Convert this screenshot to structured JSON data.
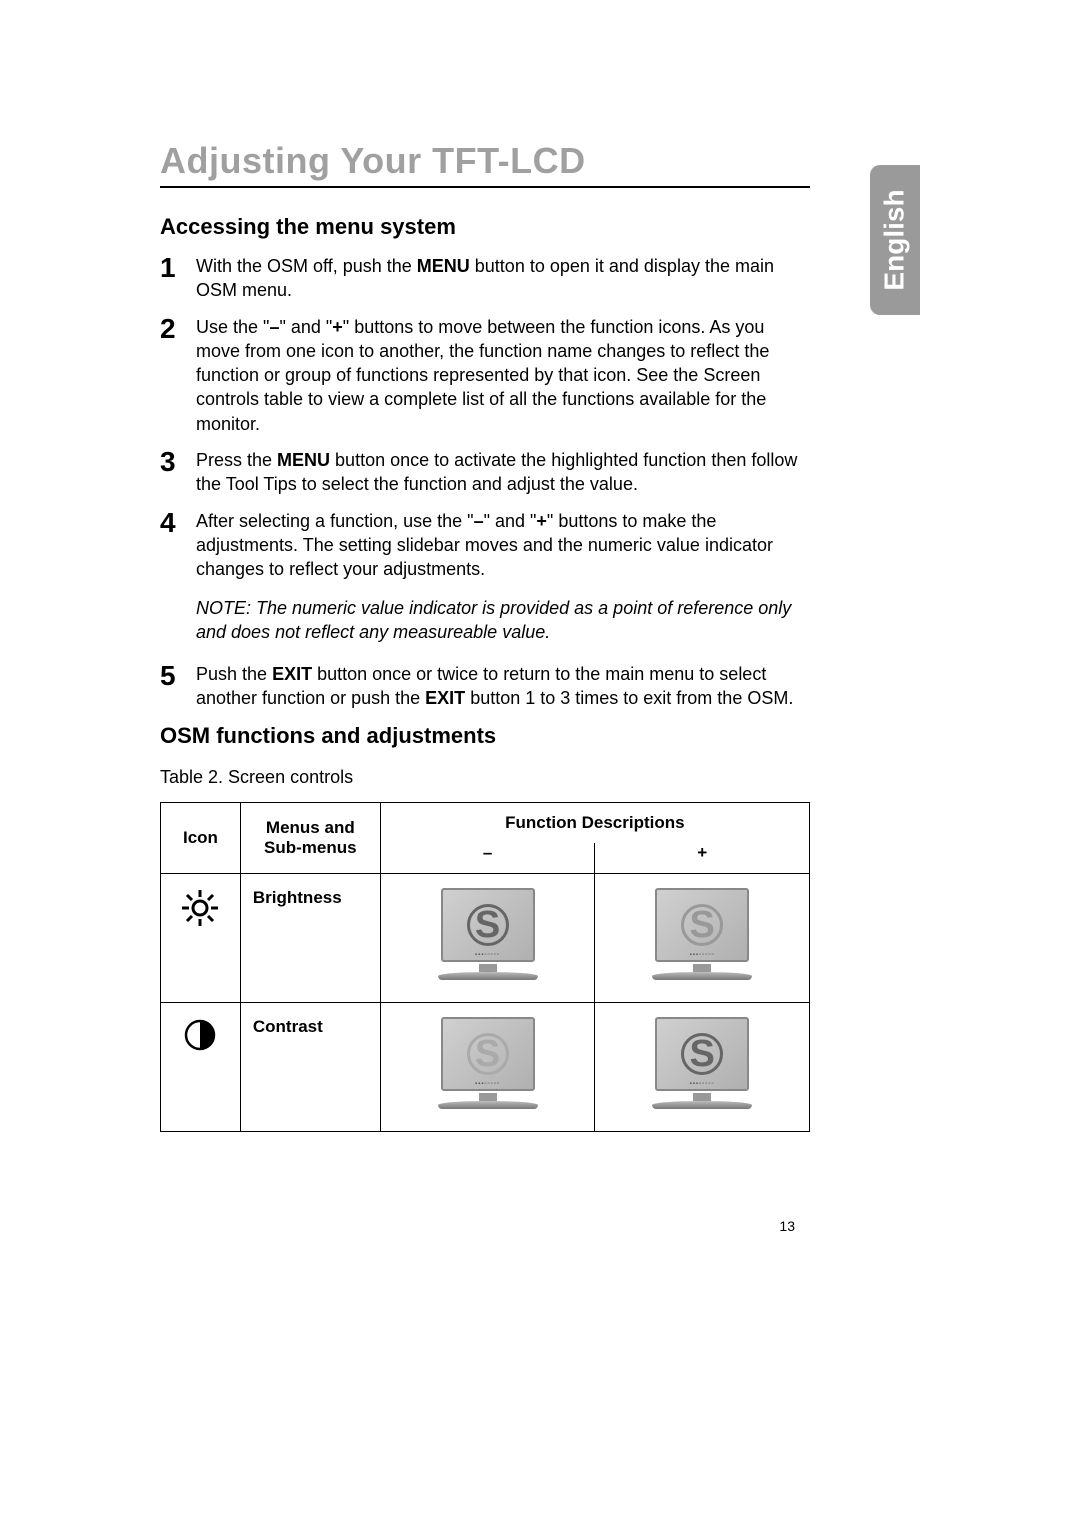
{
  "title": "Adjusting Your TFT-LCD",
  "language_tab": "English",
  "section1_heading": "Accessing the menu system",
  "steps": [
    {
      "num": "1",
      "html": "With the OSM off, push the <b>MENU</b> button to open it and display the main OSM menu."
    },
    {
      "num": "2",
      "html": "Use the \"<b>–</b>\" and \"<b>+</b>\" buttons to move between the function icons. As you move from one icon to another, the function name changes to reflect the function or group of functions represented by that icon. See the Screen controls table to view a complete list of all the functions available for the monitor."
    },
    {
      "num": "3",
      "html": "Press the <b>MENU</b> button once to activate the highlighted function then follow the Tool Tips to select the function and adjust the value."
    },
    {
      "num": "4",
      "html": "After selecting a function, use the \"<b>–</b>\" and \"<b>+</b>\" buttons to make the adjustments. The setting slidebar moves and the numeric value indicator changes to reflect your adjustments."
    }
  ],
  "note": "NOTE: The numeric value indicator is provided as a point of reference only and does not reflect any measureable value.",
  "step5": {
    "num": "5",
    "html": "Push the <b>EXIT</b> button once or twice to return to the main menu to select another function or push the <b>EXIT</b> button 1 to 3 times to exit from the OSM."
  },
  "section2_heading": "OSM functions and adjustments",
  "table_caption": "Table 2.  Screen controls",
  "table": {
    "headers": {
      "icon": "Icon",
      "menus": "Menus and Sub-menus",
      "func": "Function Descriptions",
      "minus": "–",
      "plus": "+"
    },
    "rows": [
      {
        "icon": "brightness",
        "label": "Brightness"
      },
      {
        "icon": "contrast",
        "label": "Contrast"
      }
    ]
  },
  "page_number": "13",
  "monitor_glyph": "S"
}
